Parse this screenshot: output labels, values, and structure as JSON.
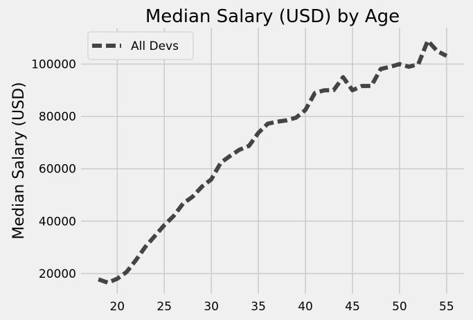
{
  "chart_data": {
    "type": "line",
    "title": "Median Salary (USD) by Age",
    "xlabel": "",
    "ylabel": "Median Salary (USD)",
    "xlim": [
      16.15,
      56.85
    ],
    "ylim": [
      12300,
      113900
    ],
    "xticks": [
      20,
      25,
      30,
      35,
      40,
      45,
      50,
      55
    ],
    "yticks": [
      20000,
      40000,
      60000,
      80000,
      100000
    ],
    "grid": true,
    "legend_position": "top-left",
    "series": [
      {
        "name": "All Devs",
        "color": "#444444",
        "style": "dashed",
        "x": [
          18,
          19,
          20,
          21,
          22,
          23,
          24,
          25,
          26,
          27,
          28,
          29,
          30,
          31,
          32,
          33,
          34,
          35,
          36,
          37,
          38,
          39,
          40,
          41,
          42,
          43,
          44,
          45,
          46,
          47,
          48,
          49,
          50,
          51,
          52,
          53,
          54,
          55
        ],
        "y": [
          17784,
          16500,
          18012,
          20628,
          25206,
          30252,
          34368,
          38496,
          42000,
          46752,
          49320,
          53200,
          56000,
          62316,
          64928,
          67317,
          68748,
          73752,
          77232,
          78000,
          78508,
          79536,
          82488,
          88935,
          90000,
          90056,
          95000,
          90000,
          91633,
          91660,
          98150,
          98964,
          100000,
          98988,
          100000,
          108923,
          105000,
          103117
        ]
      }
    ]
  }
}
